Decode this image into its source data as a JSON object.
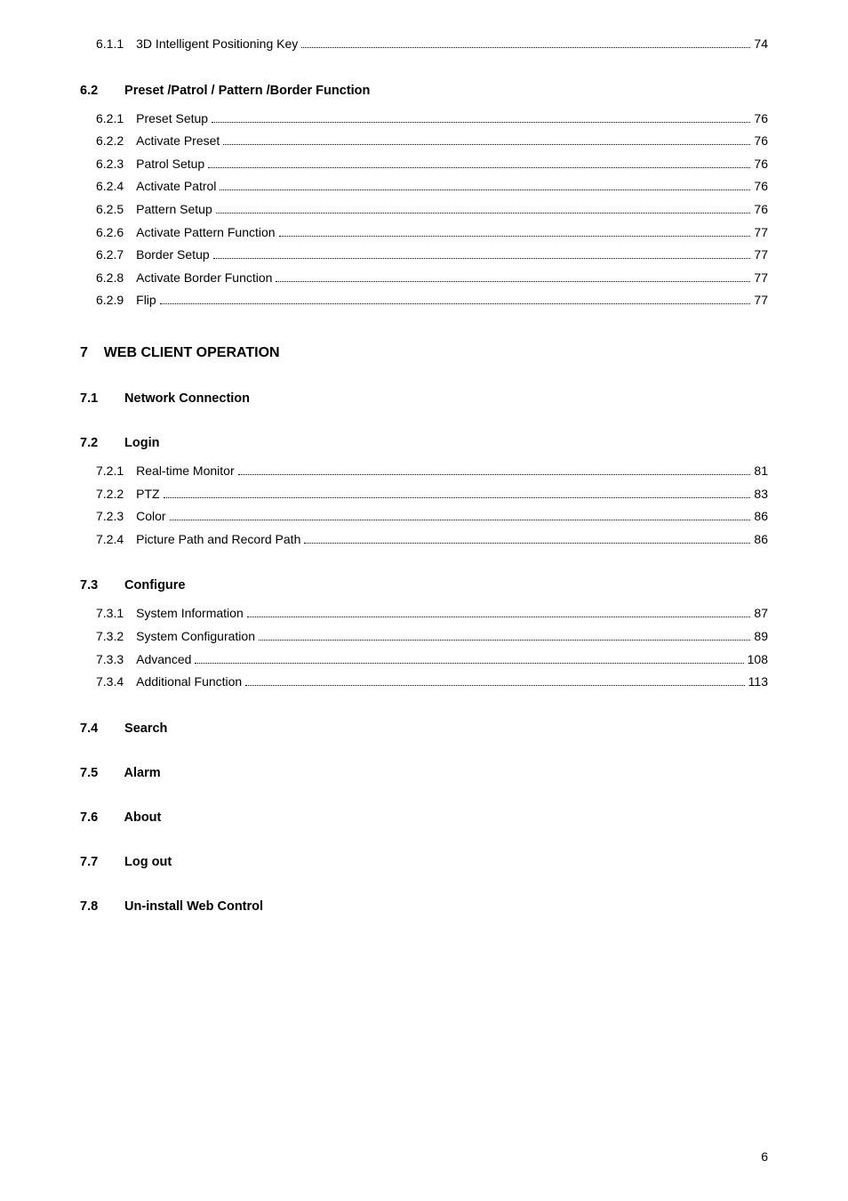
{
  "block1": {
    "items": [
      {
        "num": "6.1.1",
        "title": "3D Intelligent Positioning Key",
        "page": "74"
      }
    ]
  },
  "section62": {
    "num": "6.2",
    "title": "Preset  /Patrol / Pattern /Border  Function",
    "items": [
      {
        "num": "6.2.1",
        "title": "Preset Setup",
        "page": "76"
      },
      {
        "num": "6.2.2",
        "title": "Activate Preset",
        "page": "76"
      },
      {
        "num": "6.2.3",
        "title": "Patrol Setup",
        "page": "76"
      },
      {
        "num": "6.2.4",
        "title": "Activate Patrol",
        "page": "76"
      },
      {
        "num": "6.2.5",
        "title": "Pattern Setup",
        "page": "76"
      },
      {
        "num": "6.2.6",
        "title": "Activate Pattern Function",
        "page": "77"
      },
      {
        "num": "6.2.7",
        "title": "Border Setup",
        "page": "77"
      },
      {
        "num": "6.2.8",
        "title": "Activate Border Function",
        "page": "77"
      },
      {
        "num": "6.2.9",
        "title": "Flip",
        "page": "77"
      }
    ]
  },
  "chapter7": {
    "num": "7",
    "title": "WEB CLIENT OPERATION"
  },
  "section71": {
    "num": "7.1",
    "title": "Network Connection"
  },
  "section72": {
    "num": "7.2",
    "title": "Login",
    "items": [
      {
        "num": "7.2.1",
        "title": "Real-time Monitor",
        "page": "81"
      },
      {
        "num": "7.2.2",
        "title": "PTZ",
        "page": "83"
      },
      {
        "num": "7.2.3",
        "title": "Color",
        "page": "86"
      },
      {
        "num": "7.2.4",
        "title": "Picture Path and Record Path",
        "page": "86"
      }
    ]
  },
  "section73": {
    "num": "7.3",
    "title": "Configure",
    "items": [
      {
        "num": "7.3.1",
        "title": "System Information",
        "page": "87"
      },
      {
        "num": "7.3.2",
        "title": "System Configuration",
        "page": "89"
      },
      {
        "num": "7.3.3",
        "title": "Advanced",
        "page": "108"
      },
      {
        "num": "7.3.4",
        "title": "Additional Function",
        "page": "113"
      }
    ]
  },
  "section74": {
    "num": "7.4",
    "title": "Search"
  },
  "section75": {
    "num": "7.5",
    "title": "Alarm"
  },
  "section76": {
    "num": "7.6",
    "title": "About"
  },
  "section77": {
    "num": "7.7",
    "title": "Log out"
  },
  "section78": {
    "num": "7.8",
    "title": "Un-install Web Control"
  },
  "pageNumber": "6"
}
